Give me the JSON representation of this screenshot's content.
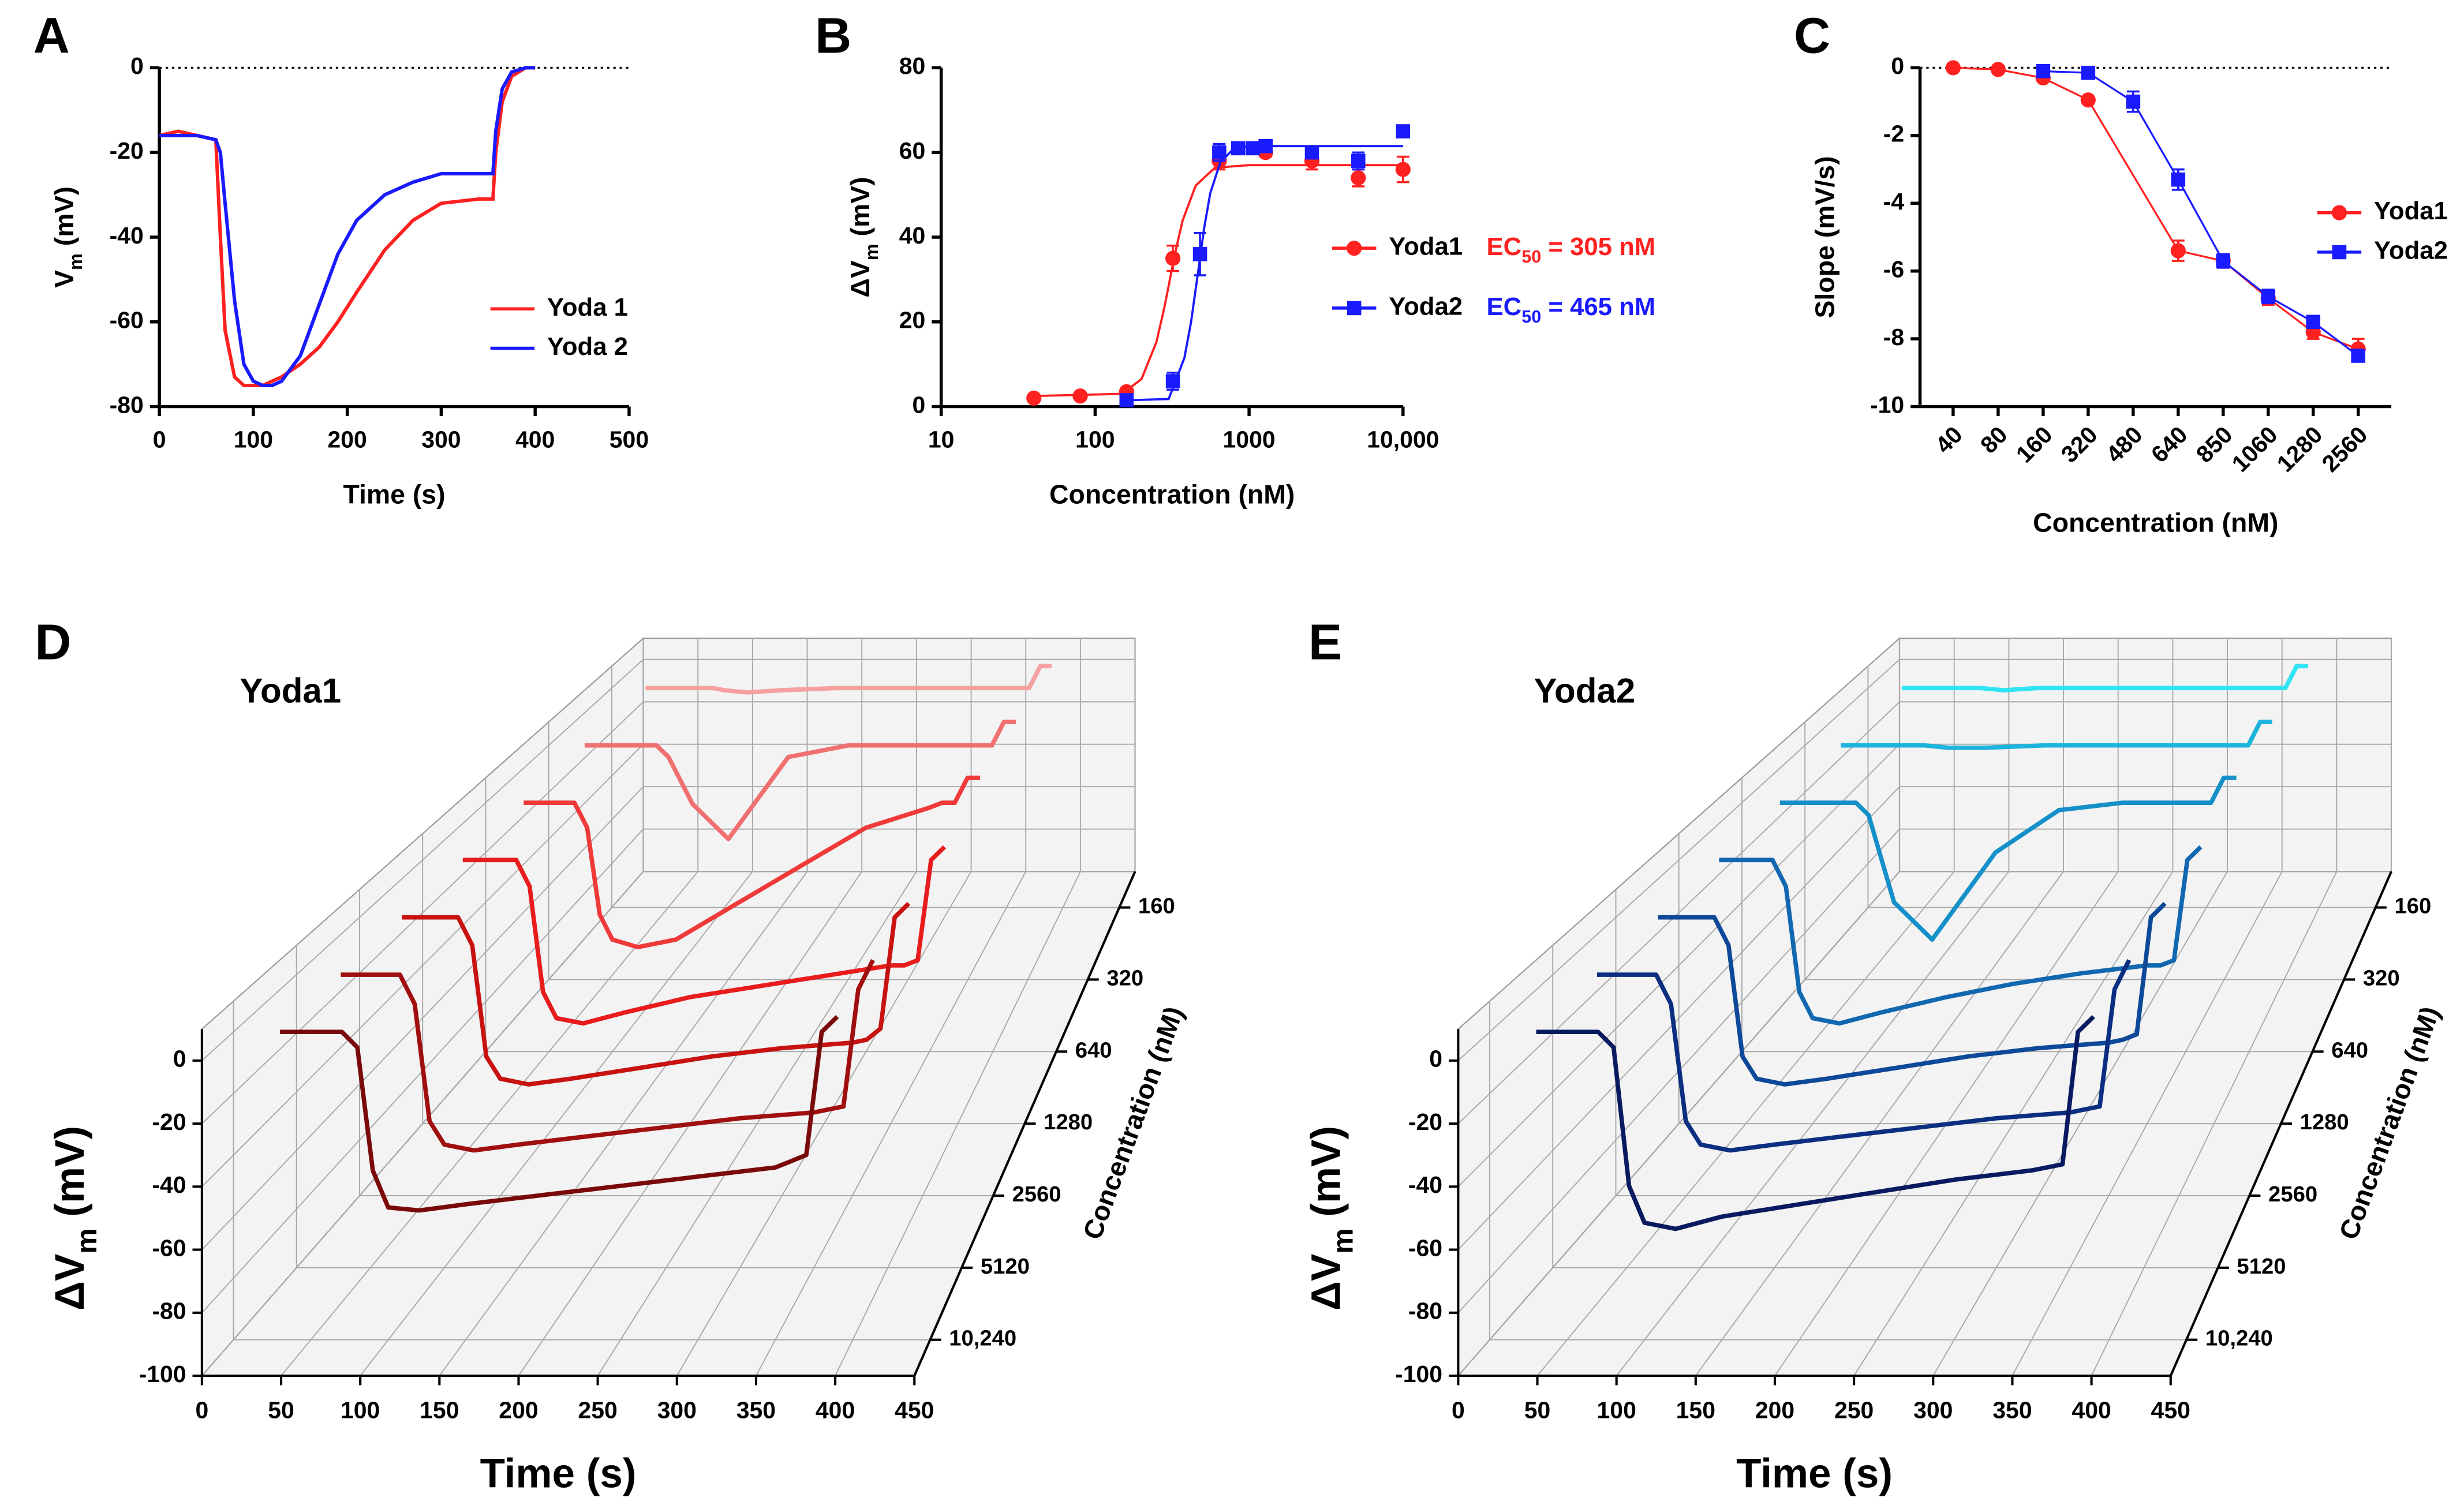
{
  "chart_data": [
    {
      "type": "line",
      "panel": "A",
      "xlabel": "Time (s)",
      "ylabel_parts": [
        "V",
        "m",
        " (mV)"
      ],
      "x": [
        0,
        20,
        40,
        60,
        65,
        70,
        80,
        90,
        100,
        110,
        120,
        130,
        150,
        170,
        190,
        210,
        240,
        270,
        300,
        340,
        355,
        358,
        365,
        375,
        390,
        400
      ],
      "xlim": [
        0,
        500
      ],
      "xticks": [
        0,
        100,
        200,
        300,
        400,
        500
      ],
      "ylim": [
        -80,
        0
      ],
      "yticks": [
        -80,
        -60,
        -40,
        -20,
        0
      ],
      "zero_line": true,
      "legend": "lower right",
      "series": [
        {
          "name": "Yoda 1",
          "color": "#ff2020",
          "values": [
            -16,
            -15,
            -16,
            -17,
            -40,
            -62,
            -73,
            -75,
            -75,
            -75,
            -74,
            -73,
            -70,
            -66,
            -60,
            -53,
            -43,
            -36,
            -32,
            -31,
            -31,
            -20,
            -8,
            -2,
            0,
            0
          ]
        },
        {
          "name": "Yoda 2",
          "color": "#1a1aff",
          "values": [
            -16,
            -16,
            -16,
            -17,
            -20,
            -32,
            -55,
            -70,
            -74,
            -75,
            -75,
            -74,
            -68,
            -56,
            -44,
            -36,
            -30,
            -27,
            -25,
            -25,
            -25,
            -15,
            -5,
            -1,
            0,
            0
          ]
        }
      ]
    },
    {
      "type": "scatter",
      "panel": "B",
      "xlabel": "Concentration (nM)",
      "ylabel_parts": [
        "ΔV",
        "m",
        " (mV)"
      ],
      "log_x": true,
      "xlim": [
        10,
        10000
      ],
      "xticks": [
        10,
        100,
        1000,
        {
          "value": 10000,
          "label": "10,000"
        }
      ],
      "ylim": [
        0,
        80
      ],
      "yticks": [
        0,
        20,
        40,
        60,
        80
      ],
      "legend": "right",
      "series": [
        {
          "name": "Yoda1",
          "color": "#ff2020",
          "marker": "circle",
          "x": [
            40,
            80,
            160,
            320,
            640,
            1280,
            2560,
            5120,
            10000
          ],
          "values": [
            2,
            2.5,
            3.5,
            35,
            58,
            60,
            58,
            54,
            56
          ],
          "errors": [
            0.5,
            0.5,
            0.5,
            3,
            2,
            1,
            2,
            2,
            3
          ],
          "fit_x": [
            40,
            150,
            200,
            250,
            280,
            305,
            330,
            370,
            450,
            600,
            1000,
            10000
          ],
          "fit_values": [
            2.5,
            3,
            6.5,
            15.2,
            22.9,
            29.8,
            36.1,
            44,
            52.2,
            56.4,
            57,
            57
          ],
          "annotation_parts": [
            "EC",
            "50",
            " = 305 nM"
          ]
        },
        {
          "name": "Yoda2",
          "color": "#1a1aff",
          "marker": "square",
          "x": [
            160,
            320,
            480,
            640,
            850,
            1060,
            1280,
            2560,
            5120,
            10000
          ],
          "values": [
            1.5,
            6,
            36,
            60,
            61,
            61,
            61.5,
            60,
            58,
            65
          ],
          "errors": [
            0.5,
            2,
            5,
            2,
            1,
            1,
            1,
            1,
            2,
            1
          ],
          "fit_x": [
            160,
            300,
            380,
            420,
            465,
            510,
            560,
            650,
            800,
            1000,
            10000
          ],
          "fit_values": [
            1.5,
            1.8,
            11.5,
            19.9,
            31.5,
            42.1,
            50.4,
            57.7,
            61,
            61.5,
            61.5
          ],
          "annotation_parts": [
            "EC",
            "50",
            " = 465 nM"
          ]
        }
      ]
    },
    {
      "type": "line",
      "panel": "C",
      "xlabel": "Concentration (nM)",
      "ylabel": "Slope (mV/s)",
      "categories": [
        "40",
        "80",
        "160",
        "320",
        "480",
        "640",
        "850",
        "1060",
        "1280",
        "2560"
      ],
      "ylim": [
        -10,
        0
      ],
      "yticks": [
        -10,
        -8,
        -6,
        -4,
        -2,
        0
      ],
      "zero_line": true,
      "legend": "upper right",
      "series": [
        {
          "name": "Yoda1",
          "color": "#ff2020",
          "marker": "circle",
          "x": [
            "40",
            "80",
            "160",
            "320",
            "640",
            "850",
            "1060",
            "1280",
            "2560"
          ],
          "values": [
            0,
            -0.05,
            -0.3,
            -0.95,
            -5.4,
            -5.7,
            -6.8,
            -7.8,
            -8.3
          ],
          "errors": [
            0.05,
            0.05,
            0.1,
            0.1,
            0.3,
            0.2,
            0.2,
            0.2,
            0.3
          ]
        },
        {
          "name": "Yoda2",
          "color": "#1a1aff",
          "marker": "square",
          "x": [
            "160",
            "320",
            "480",
            "640",
            "850",
            "1060",
            "1280",
            "2560"
          ],
          "values": [
            -0.1,
            -0.15,
            -1.0,
            -3.3,
            -5.7,
            -6.75,
            -7.5,
            -8.5
          ],
          "errors": [
            0.1,
            0.1,
            0.3,
            0.3,
            0.2,
            0.2,
            0.15,
            0.15
          ]
        }
      ]
    },
    {
      "type": "waterfall3d",
      "panel": "D",
      "title": "Yoda1",
      "xlabel": "Time (s)",
      "ylabel_parts": [
        "ΔV",
        "m",
        " (mV)"
      ],
      "zlabel": "Concentration (nM)",
      "x": [
        30,
        70,
        80,
        90,
        100,
        120,
        150,
        200,
        250,
        300,
        350,
        360,
        370,
        380,
        390
      ],
      "xlim": [
        0,
        450
      ],
      "xticks": [
        0,
        50,
        100,
        150,
        200,
        250,
        300,
        350,
        400,
        450
      ],
      "ylim": [
        -100,
        10
      ],
      "yticks": [
        -100,
        -80,
        -60,
        -40,
        -20,
        0
      ],
      "depth_categories": [
        "160",
        "320",
        "640",
        "1280",
        "2560",
        "5120",
        "10,240"
      ],
      "series": [
        {
          "color": "#f7a0a0",
          "values": [
            0,
            0,
            0,
            0,
            -1,
            -2,
            -1,
            0,
            0,
            0,
            0,
            0,
            0,
            10,
            10
          ]
        },
        {
          "color": "#f07070",
          "values": [
            0,
            0,
            0,
            0,
            -5,
            -25,
            -40,
            -5,
            0,
            0,
            0,
            0,
            0,
            10,
            10
          ]
        },
        {
          "color": "#f03a3a",
          "values": [
            0,
            0,
            -10,
            -45,
            -55,
            -58,
            -55,
            -40,
            -25,
            -10,
            -2,
            0,
            0,
            10,
            10
          ]
        },
        {
          "color": "#e81c1c",
          "values": [
            0,
            0,
            -10,
            -50,
            -60,
            -62,
            -58,
            -52,
            -48,
            -44,
            -40,
            -40,
            -38,
            0,
            5
          ]
        },
        {
          "color": "#c81212",
          "values": [
            0,
            0,
            -10,
            -50,
            -58,
            -60,
            -58,
            -54,
            -50,
            -47,
            -45,
            -44,
            -40,
            0,
            5
          ]
        },
        {
          "color": "#a00e0e",
          "values": [
            0,
            0,
            -10,
            -50,
            -58,
            -60,
            -58,
            -55,
            -52,
            -49,
            -47,
            -46,
            -45,
            -5,
            5
          ]
        },
        {
          "color": "#7a0a0a",
          "values": [
            0,
            0,
            -5,
            -45,
            -57,
            -58,
            -56,
            -53,
            -50,
            -47,
            -44,
            -42,
            -40,
            0,
            5
          ]
        }
      ]
    },
    {
      "type": "waterfall3d",
      "panel": "E",
      "title": "Yoda2",
      "xlabel": "Time (s)",
      "ylabel_parts": [
        "ΔV",
        "m",
        " (mV)"
      ],
      "zlabel": "Concentration (nM)",
      "x": [
        30,
        70,
        80,
        90,
        100,
        120,
        150,
        200,
        250,
        300,
        350,
        360,
        370,
        380,
        390
      ],
      "xlim": [
        0,
        450
      ],
      "xticks": [
        0,
        50,
        100,
        150,
        200,
        250,
        300,
        350,
        400,
        450
      ],
      "ylim": [
        -100,
        10
      ],
      "yticks": [
        -100,
        -80,
        -60,
        -40,
        -20,
        0
      ],
      "depth_categories": [
        "160",
        "320",
        "640",
        "1280",
        "2560",
        "5120",
        "10,240"
      ],
      "series": [
        {
          "color": "#30e4f4",
          "values": [
            0,
            0,
            0,
            0,
            0,
            -1,
            0,
            0,
            0,
            0,
            0,
            0,
            0,
            10,
            10
          ]
        },
        {
          "color": "#1cb4dc",
          "values": [
            0,
            0,
            0,
            0,
            0,
            -1,
            -1,
            0,
            0,
            0,
            0,
            0,
            0,
            10,
            10
          ]
        },
        {
          "color": "#1590c8",
          "values": [
            0,
            0,
            0,
            0,
            -5,
            -40,
            -55,
            -20,
            -3,
            0,
            0,
            0,
            0,
            10,
            10
          ]
        },
        {
          "color": "#1268b0",
          "values": [
            0,
            0,
            -10,
            -50,
            -60,
            -62,
            -58,
            -52,
            -47,
            -43,
            -40,
            -40,
            -38,
            0,
            5
          ]
        },
        {
          "color": "#0e4898",
          "values": [
            0,
            0,
            -10,
            -50,
            -58,
            -60,
            -58,
            -54,
            -50,
            -47,
            -45,
            -44,
            -42,
            0,
            5
          ]
        },
        {
          "color": "#0a2e80",
          "values": [
            0,
            0,
            -10,
            -50,
            -58,
            -60,
            -58,
            -55,
            -52,
            -49,
            -47,
            -46,
            -45,
            -5,
            5
          ]
        },
        {
          "color": "#0a1a60",
          "values": [
            0,
            0,
            -5,
            -50,
            -62,
            -64,
            -60,
            -56,
            -52,
            -48,
            -45,
            -44,
            -43,
            0,
            5
          ]
        }
      ]
    }
  ]
}
